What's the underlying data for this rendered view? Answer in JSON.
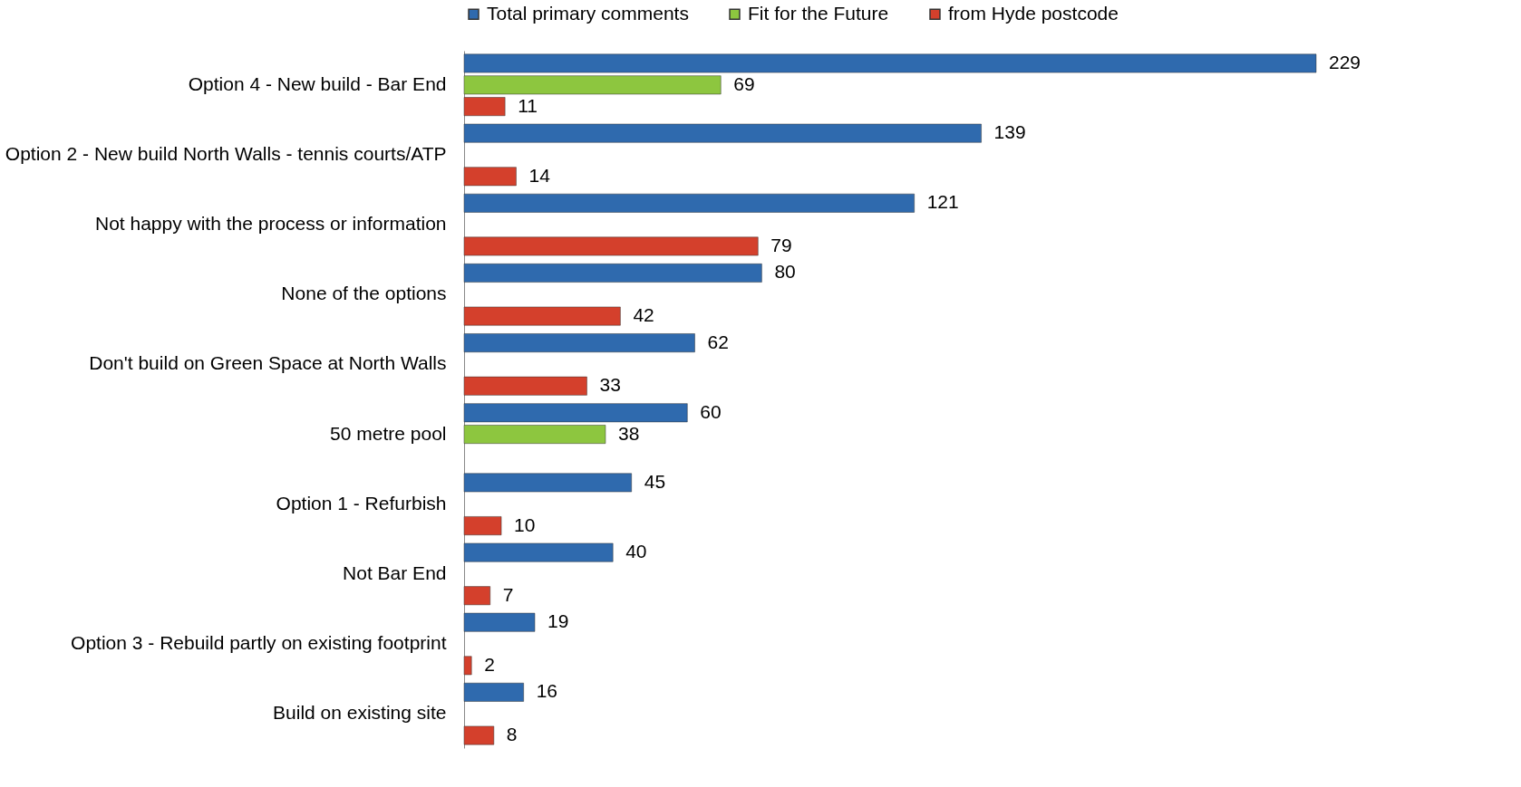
{
  "chart_data": {
    "type": "bar",
    "orientation": "horizontal",
    "legend": "top",
    "data_labels": true,
    "categories": [
      "Option 4 - New build - Bar End",
      "Option 2 - New build North Walls - tennis courts/ATP",
      "Not happy with the process or information",
      "None of the options",
      "Don't build on Green Space at North Walls",
      "50 metre pool",
      "Option 1 - Refurbish",
      "Not Bar End",
      "Option 3 - Rebuild partly on existing footprint",
      "Build on existing site"
    ],
    "series": [
      {
        "name": "Total primary comments",
        "color": "#2f6aae",
        "values": [
          229,
          139,
          121,
          80,
          62,
          60,
          45,
          40,
          19,
          16
        ]
      },
      {
        "name": "Fit for the Future",
        "color": "#8dc63f",
        "values": [
          69,
          null,
          null,
          null,
          null,
          38,
          null,
          null,
          null,
          null
        ]
      },
      {
        "name": "from Hyde postcode",
        "color": "#d4402c",
        "values": [
          11,
          14,
          79,
          42,
          33,
          null,
          10,
          7,
          2,
          8
        ]
      }
    ]
  }
}
